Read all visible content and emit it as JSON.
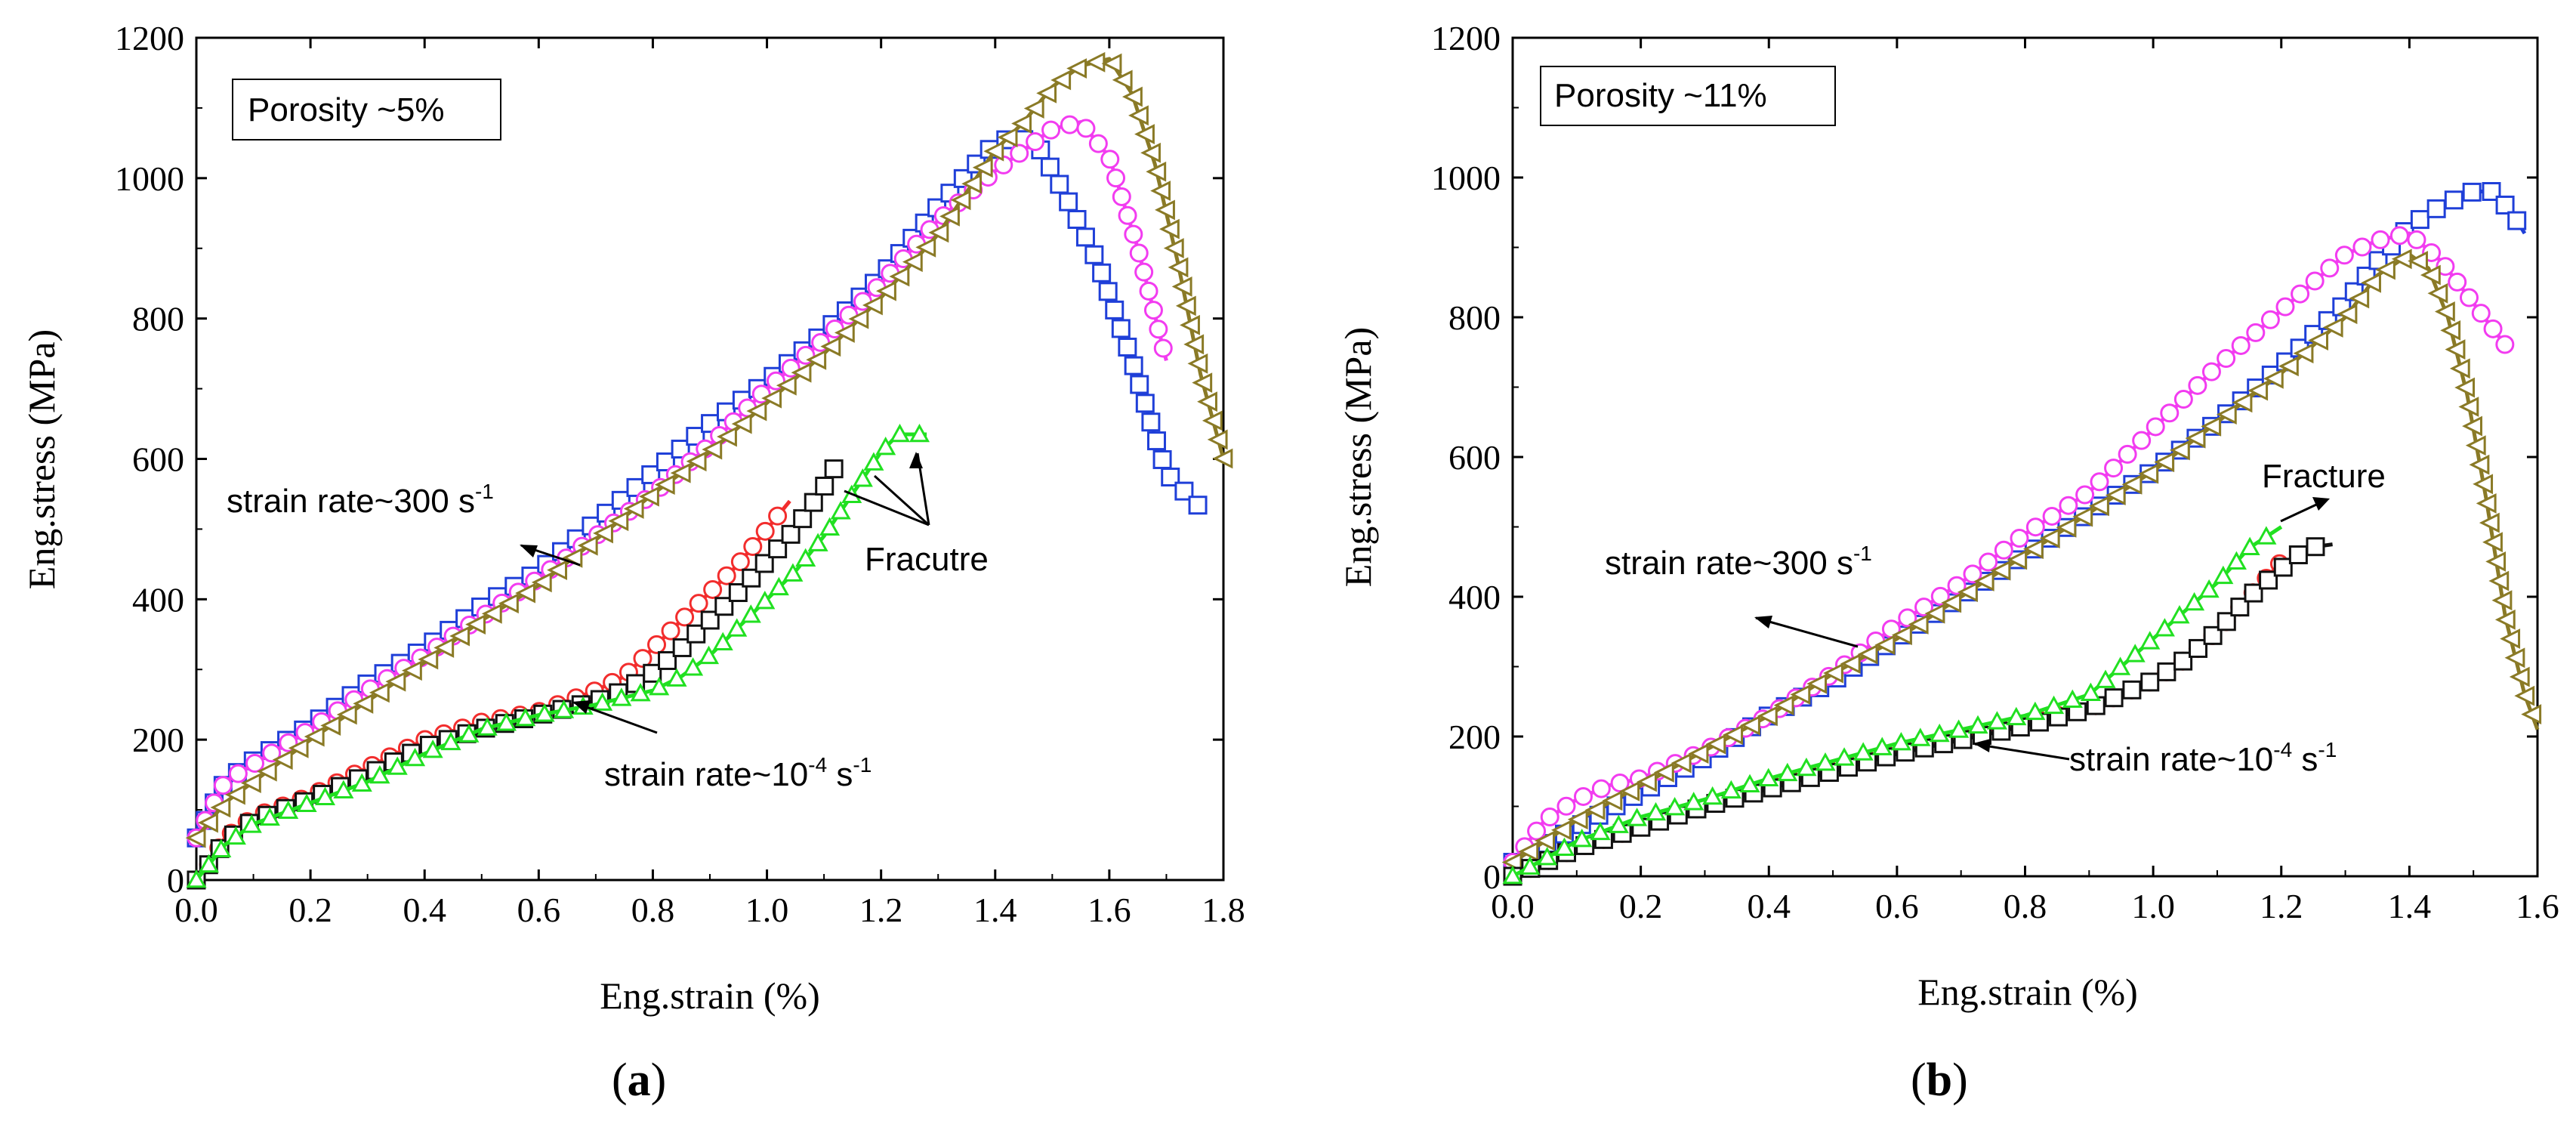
{
  "chart_data": [
    {
      "type": "line",
      "panel_label": "a",
      "inset_label": "Porosity ~5%",
      "xlabel": "Eng.strain (%)",
      "ylabel": "Eng.stress (MPa)",
      "xlim": [
        0,
        1.8
      ],
      "ylim": [
        0,
        1200
      ],
      "xticks": [
        "0.0",
        "0.2",
        "0.4",
        "0.6",
        "0.8",
        "1.0",
        "1.2",
        "1.4",
        "1.6",
        "1.8"
      ],
      "yticks": [
        "0",
        "200",
        "400",
        "600",
        "800",
        "1000",
        "1200"
      ],
      "annotations": {
        "high_rate": {
          "text": "strain rate~300 s",
          "sup": "-1"
        },
        "low_rate": {
          "text": "strain rate~10",
          "sup": "-4",
          "tail": " s",
          "sup2": "-1"
        },
        "fracture": {
          "text": "Fracutre"
        }
      },
      "series": [
        {
          "name": "300/s blue square",
          "color": "#1f3fd8",
          "marker": "square",
          "x": [
            0,
            0.05,
            0.1,
            0.2,
            0.3,
            0.4,
            0.5,
            0.6,
            0.7,
            0.8,
            0.9,
            1.0,
            1.1,
            1.2,
            1.3,
            1.4,
            1.44,
            1.48,
            1.52,
            1.58,
            1.64,
            1.7,
            1.76
          ],
          "y": [
            60,
            140,
            170,
            220,
            280,
            330,
            390,
            440,
            510,
            580,
            650,
            710,
            780,
            860,
            960,
            1050,
            1060,
            1040,
            980,
            880,
            740,
            580,
            530
          ]
        },
        {
          "name": "300/s magenta circle",
          "color": "#f23cf0",
          "marker": "circle",
          "x": [
            0,
            0.05,
            0.1,
            0.2,
            0.3,
            0.4,
            0.5,
            0.6,
            0.7,
            0.8,
            0.9,
            1.0,
            1.1,
            1.2,
            1.3,
            1.4,
            1.45,
            1.5,
            1.55,
            1.6,
            1.65,
            1.7
          ],
          "y": [
            60,
            140,
            165,
            215,
            270,
            320,
            375,
            430,
            490,
            550,
            620,
            700,
            770,
            850,
            940,
            1010,
            1040,
            1070,
            1080,
            1030,
            900,
            740
          ]
        },
        {
          "name": "300/s olive triangle",
          "color": "#8a7a26",
          "marker": "tri-left",
          "x": [
            0,
            0.05,
            0.1,
            0.2,
            0.3,
            0.4,
            0.5,
            0.6,
            0.7,
            0.8,
            0.9,
            1.0,
            1.1,
            1.2,
            1.3,
            1.4,
            1.45,
            1.5,
            1.55,
            1.6,
            1.64,
            1.68,
            1.72,
            1.76,
            1.8
          ],
          "y": [
            60,
            110,
            140,
            200,
            255,
            310,
            370,
            420,
            485,
            550,
            610,
            680,
            750,
            830,
            920,
            1040,
            1080,
            1130,
            1160,
            1170,
            1120,
            1020,
            880,
            720,
            600
          ]
        },
        {
          "name": "1e-4/s red circle",
          "color": "#f22d2d",
          "marker": "circle",
          "x": [
            0,
            0.02,
            0.05,
            0.1,
            0.2,
            0.3,
            0.4,
            0.5,
            0.6,
            0.7,
            0.75,
            0.8,
            0.85,
            0.9,
            0.95,
            1.0,
            1.04
          ],
          "y": [
            0,
            20,
            60,
            90,
            120,
            160,
            200,
            225,
            240,
            270,
            290,
            330,
            370,
            410,
            450,
            500,
            540
          ]
        },
        {
          "name": "1e-4/s black square",
          "color": "#111111",
          "marker": "square",
          "x": [
            0,
            0.02,
            0.05,
            0.1,
            0.2,
            0.3,
            0.4,
            0.5,
            0.6,
            0.7,
            0.75,
            0.8,
            0.85,
            0.9,
            0.95,
            1.0,
            1.05,
            1.1,
            1.12
          ],
          "y": [
            0,
            20,
            55,
            85,
            115,
            150,
            190,
            215,
            235,
            255,
            270,
            295,
            330,
            370,
            410,
            455,
            500,
            560,
            590
          ]
        },
        {
          "name": "1e-4/s green triangle",
          "color": "#21e021",
          "marker": "tri-up",
          "x": [
            0,
            0.02,
            0.05,
            0.1,
            0.2,
            0.3,
            0.4,
            0.5,
            0.6,
            0.7,
            0.8,
            0.85,
            0.9,
            0.95,
            1.0,
            1.05,
            1.1,
            1.15,
            1.2,
            1.23,
            1.28
          ],
          "y": [
            0,
            20,
            50,
            80,
            110,
            140,
            180,
            215,
            235,
            250,
            270,
            290,
            320,
            360,
            400,
            440,
            490,
            550,
            610,
            635,
            635
          ]
        }
      ]
    },
    {
      "type": "line",
      "panel_label": "b",
      "inset_label": "Porosity ~11%",
      "xlabel": "Eng.strain (%)",
      "ylabel": "Eng.stress (MPa)",
      "xlim": [
        0,
        1.6
      ],
      "ylim": [
        0,
        1200
      ],
      "xticks": [
        "0.0",
        "0.2",
        "0.4",
        "0.6",
        "0.8",
        "1.0",
        "1.2",
        "1.4",
        "1.6"
      ],
      "yticks": [
        "0",
        "200",
        "400",
        "600",
        "800",
        "1000",
        "1200"
      ],
      "annotations": {
        "high_rate": {
          "text": "strain rate~300 s",
          "sup": "-1"
        },
        "low_rate": {
          "text": "strain rate~10",
          "sup": "-4",
          "tail": " s",
          "sup2": "-1"
        },
        "fracture": {
          "text": "Fracture"
        }
      },
      "series": [
        {
          "name": "300/s blue square",
          "color": "#1f3fd8",
          "marker": "square",
          "x": [
            0,
            0.1,
            0.2,
            0.3,
            0.4,
            0.5,
            0.6,
            0.7,
            0.8,
            0.9,
            1.0,
            1.1,
            1.2,
            1.3,
            1.35,
            1.4,
            1.45,
            1.5,
            1.53,
            1.56,
            1.58
          ],
          "y": [
            20,
            70,
            120,
            170,
            230,
            280,
            340,
            400,
            460,
            520,
            580,
            650,
            730,
            820,
            880,
            930,
            960,
            980,
            980,
            950,
            920
          ]
        },
        {
          "name": "300/s magenta circle",
          "color": "#f23cf0",
          "marker": "circle",
          "x": [
            0,
            0.05,
            0.1,
            0.15,
            0.2,
            0.3,
            0.4,
            0.5,
            0.6,
            0.7,
            0.8,
            0.9,
            1.0,
            1.1,
            1.2,
            1.3,
            1.35,
            1.4,
            1.45,
            1.5,
            1.55
          ],
          "y": [
            20,
            80,
            110,
            130,
            140,
            180,
            230,
            290,
            360,
            420,
            490,
            550,
            640,
            730,
            810,
            890,
            910,
            920,
            880,
            820,
            760
          ]
        },
        {
          "name": "300/s olive triangle",
          "color": "#8a7a26",
          "marker": "tri-left",
          "x": [
            0,
            0.1,
            0.2,
            0.3,
            0.4,
            0.5,
            0.6,
            0.7,
            0.8,
            0.9,
            1.0,
            1.1,
            1.2,
            1.3,
            1.35,
            1.4,
            1.43,
            1.46,
            1.49,
            1.52,
            1.55,
            1.58,
            1.6
          ],
          "y": [
            20,
            80,
            130,
            180,
            230,
            290,
            340,
            400,
            460,
            520,
            580,
            650,
            720,
            800,
            860,
            890,
            870,
            800,
            690,
            540,
            370,
            260,
            210
          ]
        },
        {
          "name": "1e-4/s red circle",
          "color": "#f22d2d",
          "marker": "circle",
          "x": [
            0,
            0.1,
            0.2,
            0.3,
            0.4,
            0.5,
            0.6,
            0.7,
            0.8,
            0.9,
            1.0,
            1.05,
            1.1,
            1.15,
            1.2
          ],
          "y": [
            0,
            40,
            70,
            100,
            130,
            155,
            180,
            200,
            220,
            240,
            280,
            310,
            350,
            400,
            450
          ]
        },
        {
          "name": "1e-4/s black square",
          "color": "#111111",
          "marker": "square",
          "x": [
            0,
            0.1,
            0.2,
            0.3,
            0.4,
            0.5,
            0.6,
            0.7,
            0.8,
            0.9,
            1.0,
            1.05,
            1.1,
            1.15,
            1.2,
            1.24,
            1.28
          ],
          "y": [
            0,
            40,
            70,
            100,
            125,
            150,
            175,
            195,
            215,
            240,
            280,
            310,
            350,
            400,
            440,
            470,
            475
          ]
        },
        {
          "name": "1e-4/s green triangle",
          "color": "#21e021",
          "marker": "tri-up",
          "x": [
            0,
            0.1,
            0.2,
            0.3,
            0.4,
            0.5,
            0.6,
            0.7,
            0.8,
            0.9,
            0.95,
            1.0,
            1.05,
            1.1,
            1.15,
            1.2
          ],
          "y": [
            0,
            50,
            85,
            110,
            140,
            165,
            190,
            210,
            230,
            260,
            300,
            340,
            380,
            420,
            470,
            500
          ]
        }
      ]
    }
  ]
}
